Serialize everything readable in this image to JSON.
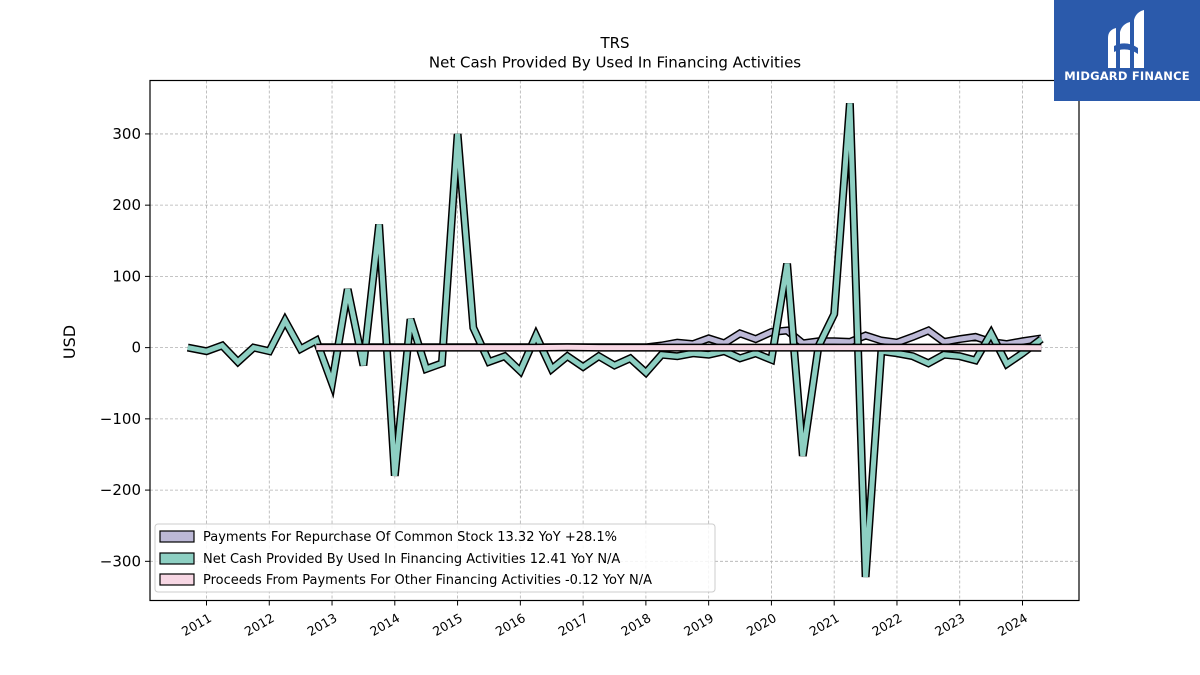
{
  "header": {
    "ticker": "TRS",
    "subtitle": "Net Cash Provided By Used In Financing Activities"
  },
  "logo": {
    "text": "MIDGARD FINANCE",
    "color": "#2b5aab"
  },
  "chart_data": {
    "type": "line",
    "ylabel": "USD",
    "xlabel": "",
    "ylim": [
      -355,
      375
    ],
    "xlim": [
      2010.1,
      2024.9
    ],
    "yticks": [
      300,
      200,
      100,
      0,
      -100,
      -200,
      -300
    ],
    "ytick_labels": [
      "300",
      "200",
      "100",
      "0",
      "−100",
      "−200",
      "−300"
    ],
    "xticks": [
      2011,
      2012,
      2013,
      2014,
      2015,
      2016,
      2017,
      2018,
      2019,
      2020,
      2021,
      2022,
      2023,
      2024
    ],
    "xtick_labels": [
      "2011",
      "2012",
      "2013",
      "2014",
      "2015",
      "2016",
      "2017",
      "2018",
      "2019",
      "2020",
      "2021",
      "2022",
      "2023",
      "2024"
    ],
    "grid": true,
    "legend_position": "bottom-left",
    "legend": [
      "Payments For Repurchase Of Common Stock  13.32 YoY +28.1%",
      "Net Cash Provided By Used In Financing Activities  12.41 YoY N/A",
      "Proceeds From Payments For Other Financing Activities  -0.12 YoY N/A"
    ],
    "series": [
      {
        "name": "Payments For Repurchase Of Common Stock",
        "color": "#bcb8d6",
        "x": [
          2012.75,
          2013.0,
          2013.25,
          2013.5,
          2013.75,
          2014.0,
          2014.25,
          2014.5,
          2014.75,
          2015.0,
          2015.25,
          2015.5,
          2015.75,
          2016.0,
          2016.25,
          2016.5,
          2016.75,
          2017.0,
          2017.25,
          2017.5,
          2017.75,
          2018.0,
          2018.25,
          2018.5,
          2018.75,
          2019.0,
          2019.25,
          2019.5,
          2019.75,
          2020.0,
          2020.25,
          2020.5,
          2020.75,
          2021.0,
          2021.25,
          2021.5,
          2021.75,
          2022.0,
          2022.25,
          2022.5,
          2022.75,
          2023.0,
          2023.25,
          2023.5,
          2023.75,
          2024.0,
          2024.3
        ],
        "values": [
          0.5,
          0.5,
          0.5,
          0.5,
          0.5,
          0.5,
          0.5,
          0.5,
          0.5,
          0.5,
          0.5,
          0.5,
          0.5,
          0.5,
          0.5,
          0.5,
          0.5,
          0.5,
          0.5,
          0.5,
          0.5,
          0.5,
          3,
          7,
          5,
          13,
          6,
          20,
          12,
          22,
          24,
          6,
          9,
          9,
          8,
          17,
          10,
          7,
          15,
          24,
          8,
          12,
          15,
          8,
          5,
          9,
          13
        ]
      },
      {
        "name": "Net Cash Provided By Used In Financing Activities",
        "color": "#8dcfc2",
        "x": [
          2010.7,
          2011.0,
          2011.25,
          2011.5,
          2011.75,
          2012.0,
          2012.25,
          2012.5,
          2012.75,
          2013.0,
          2013.25,
          2013.5,
          2013.75,
          2014.0,
          2014.25,
          2014.5,
          2014.75,
          2015.0,
          2015.25,
          2015.5,
          2015.75,
          2016.0,
          2016.25,
          2016.5,
          2016.75,
          2017.0,
          2017.25,
          2017.5,
          2017.75,
          2018.0,
          2018.25,
          2018.5,
          2018.75,
          2019.0,
          2019.25,
          2019.5,
          2019.75,
          2020.0,
          2020.25,
          2020.5,
          2020.75,
          2021.0,
          2021.25,
          2021.5,
          2021.75,
          2022.0,
          2022.25,
          2022.5,
          2022.75,
          2023.0,
          2023.25,
          2023.5,
          2023.75,
          2024.0,
          2024.3
        ],
        "values": [
          0,
          -5,
          3,
          -20,
          0,
          -5,
          38,
          -2,
          10,
          -50,
          82,
          -25,
          173,
          -180,
          40,
          -30,
          -22,
          300,
          28,
          -20,
          -12,
          -33,
          17,
          -30,
          -12,
          -27,
          -12,
          -25,
          -15,
          -35,
          -10,
          -12,
          -8,
          -10,
          -5,
          -15,
          -8,
          -17,
          118,
          -152,
          2,
          47,
          343,
          -322,
          -5,
          -8,
          -12,
          -22,
          -10,
          -12,
          -18,
          20,
          -23,
          -8,
          12
        ]
      },
      {
        "name": "Proceeds From Payments For Other Financing Activities",
        "color": "#f7d7e4",
        "x": [
          2012.75,
          2013.25,
          2013.75,
          2014.25,
          2014.75,
          2015.25,
          2015.75,
          2016.25,
          2016.75,
          2017.25,
          2017.75,
          2018.25,
          2018.75,
          2019.25,
          2019.75,
          2020.25,
          2020.75,
          2021.25,
          2021.75,
          2022.25,
          2022.75,
          2023.25,
          2023.75,
          2024.3
        ],
        "values": [
          0,
          0,
          0,
          0,
          0,
          0,
          0,
          0,
          0.5,
          0,
          0,
          0,
          0,
          0,
          0,
          0,
          0,
          0,
          0,
          0,
          0,
          0,
          0,
          -0.12
        ]
      }
    ]
  }
}
